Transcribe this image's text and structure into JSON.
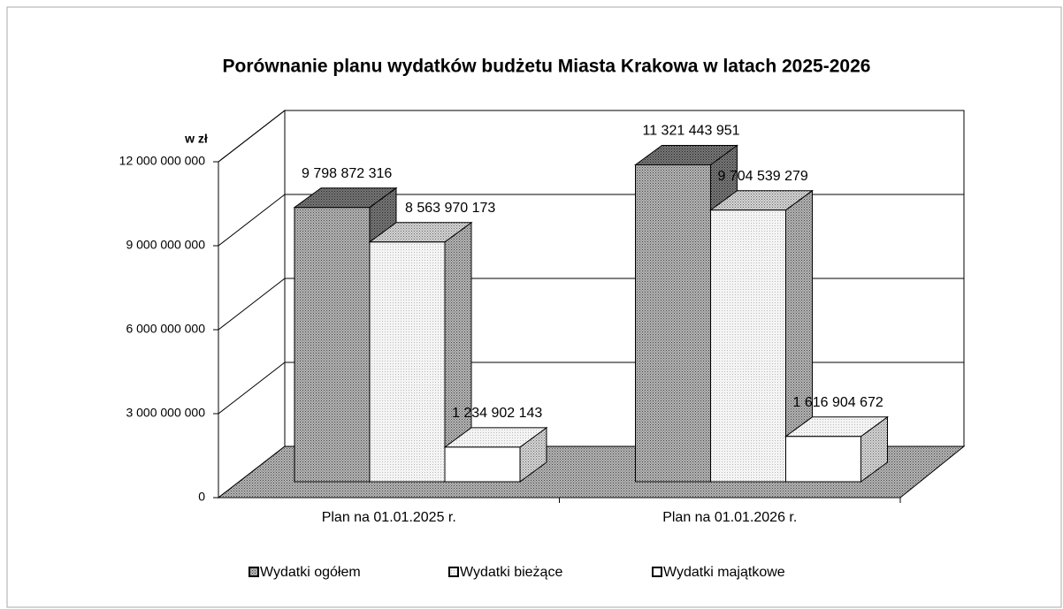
{
  "chart_data": {
    "type": "bar3d",
    "title": "Porównanie planu wydatków budżetu Miasta Krakowa w latach 2025-2026",
    "y_axis_label": "w zł",
    "categories": [
      "Plan na 01.01.2025 r.",
      "Plan na 01.01.2026 r."
    ],
    "series": [
      {
        "name": "Wydatki ogółem",
        "color": "#9a9a9a",
        "values": [
          9798872316,
          11321443951
        ],
        "value_labels": [
          "9 798 872 316",
          "11 321 443 951"
        ]
      },
      {
        "name": "Wydatki bieżące",
        "color": "#f0f0f0",
        "values": [
          8563970173,
          9704539279
        ],
        "value_labels": [
          "8 563 970 173",
          "9 704 539 279"
        ]
      },
      {
        "name": "Wydatki majątkowe",
        "color": "#ffffff",
        "values": [
          1234902143,
          1616904672
        ],
        "value_labels": [
          "1 234 902 143",
          "1 616 904 672"
        ]
      }
    ],
    "ylim": [
      0,
      12000000000
    ],
    "yticks": [
      0,
      {
        "value": 3000000000,
        "label": "3 000 000 000"
      },
      {
        "value": 6000000000,
        "label": "6 000 000 000"
      },
      {
        "value": 9000000000,
        "label": "9 000 000 000"
      },
      {
        "value": 12000000000,
        "label": "12 000 000 000"
      }
    ],
    "grid": true,
    "legend": "bottom"
  }
}
